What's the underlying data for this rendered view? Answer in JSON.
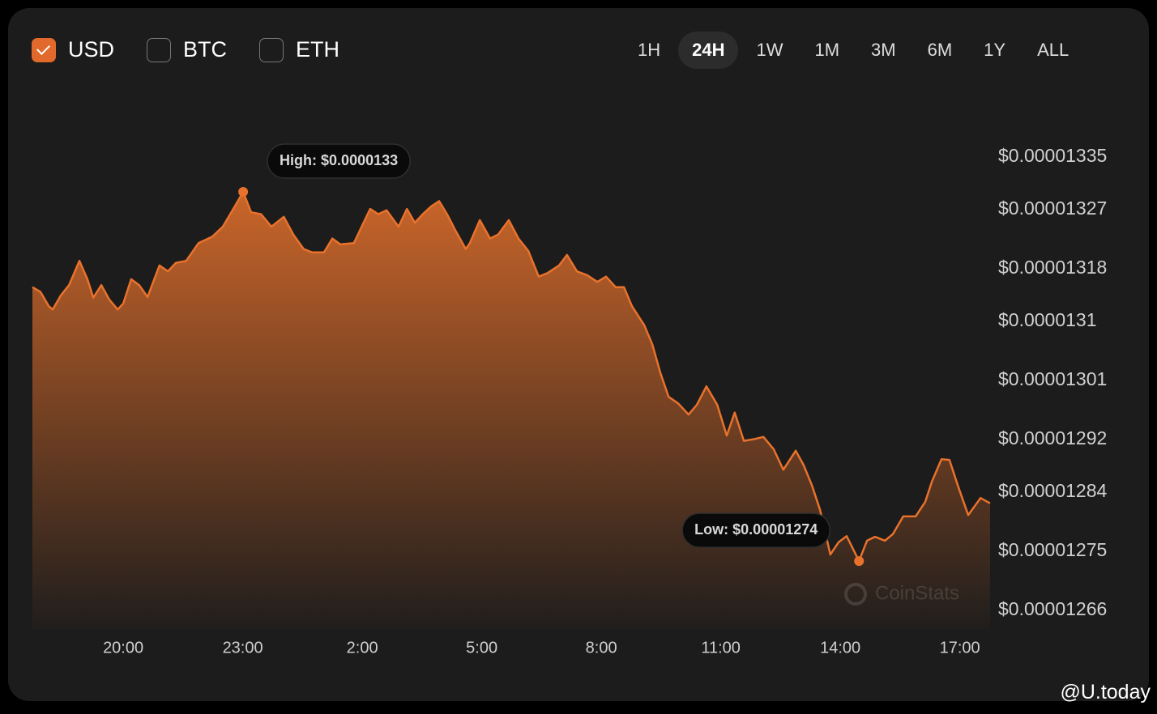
{
  "controls": {
    "currencies": [
      {
        "label": "USD",
        "checked": true
      },
      {
        "label": "BTC",
        "checked": false
      },
      {
        "label": "ETH",
        "checked": false
      }
    ],
    "ranges": [
      {
        "label": "1H",
        "selected": false
      },
      {
        "label": "24H",
        "selected": true
      },
      {
        "label": "1W",
        "selected": false
      },
      {
        "label": "1M",
        "selected": false
      },
      {
        "label": "3M",
        "selected": false
      },
      {
        "label": "6M",
        "selected": false
      },
      {
        "label": "1Y",
        "selected": false
      },
      {
        "label": "ALL",
        "selected": false
      }
    ]
  },
  "chart_data": {
    "type": "area",
    "color": "#e8722c",
    "x": [
      17.72,
      17.92,
      18.13,
      18.23,
      18.43,
      18.64,
      18.9,
      19.1,
      19.25,
      19.45,
      19.65,
      19.86,
      20.0,
      20.2,
      20.4,
      20.61,
      20.91,
      21.12,
      21.32,
      21.58,
      21.89,
      22.24,
      22.5,
      22.8,
      23.01,
      23.21,
      23.46,
      23.72,
      24.03,
      24.27,
      24.53,
      24.74,
      25.04,
      25.25,
      25.45,
      25.79,
      26.0,
      26.2,
      26.4,
      26.61,
      26.91,
      27.12,
      27.32,
      27.52,
      27.73,
      27.93,
      28.13,
      28.34,
      28.6,
      28.7,
      28.95,
      29.21,
      29.41,
      29.68,
      29.92,
      30.17,
      30.43,
      30.64,
      30.94,
      31.14,
      31.39,
      31.65,
      31.9,
      32.12,
      32.36,
      32.57,
      32.77,
      33.08,
      33.28,
      33.48,
      33.69,
      33.93,
      34.19,
      34.4,
      34.64,
      34.91,
      35.15,
      35.35,
      35.58,
      35.86,
      36.07,
      36.33,
      36.57,
      36.88,
      37.08,
      37.29,
      37.49,
      37.75,
      37.96,
      38.16,
      38.47,
      38.67,
      38.87,
      39.12,
      39.32,
      39.58,
      39.89,
      40.13,
      40.3,
      40.54,
      40.74,
      40.95,
      41.21,
      41.52,
      41.76
    ],
    "values": [
      1.3152e-05,
      1.3145e-05,
      1.3123e-05,
      1.3118e-05,
      1.3139e-05,
      1.3155e-05,
      1.3192e-05,
      1.3164e-05,
      1.3136e-05,
      1.3155e-05,
      1.3133e-05,
      1.3118e-05,
      1.3127e-05,
      1.3164e-05,
      1.3155e-05,
      1.3137e-05,
      1.3185e-05,
      1.3176e-05,
      1.3189e-05,
      1.3192e-05,
      1.3219e-05,
      1.3229e-05,
      1.3244e-05,
      1.3275e-05,
      1.3297e-05,
      1.3266e-05,
      1.3263e-05,
      1.3244e-05,
      1.3259e-05,
      1.3232e-05,
      1.321e-05,
      1.3205e-05,
      1.3205e-05,
      1.3226e-05,
      1.3217e-05,
      1.3219e-05,
      1.3246e-05,
      1.3271e-05,
      1.3263e-05,
      1.3269e-05,
      1.3244e-05,
      1.3271e-05,
      1.325e-05,
      1.3263e-05,
      1.3275e-05,
      1.3283e-05,
      1.3263e-05,
      1.3238e-05,
      1.321e-05,
      1.3219e-05,
      1.3254e-05,
      1.3226e-05,
      1.3232e-05,
      1.3254e-05,
      1.3226e-05,
      1.3207e-05,
      1.3168e-05,
      1.3173e-05,
      1.3185e-05,
      1.3201e-05,
      1.3176e-05,
      1.317e-05,
      1.316e-05,
      1.3168e-05,
      1.3152e-05,
      1.3152e-05,
      1.3123e-05,
      1.3094e-05,
      1.3065e-05,
      1.3022e-05,
      1.2985e-05,
      1.2975e-05,
      1.2958e-05,
      1.2973e-05,
      1.3001e-05,
      1.2973e-05,
      1.2926e-05,
      1.2961e-05,
      1.2918e-05,
      1.2921e-05,
      1.2924e-05,
      1.2905e-05,
      1.2874e-05,
      1.2903e-05,
      1.2881e-05,
      1.285e-05,
      1.2813e-05,
      1.2745e-05,
      1.2764e-05,
      1.2773e-05,
      1.2735e-05,
      1.2766e-05,
      1.2772e-05,
      1.2766e-05,
      1.2776e-05,
      1.2803e-05,
      1.2803e-05,
      1.2825e-05,
      1.2856e-05,
      1.289e-05,
      1.2889e-05,
      1.285e-05,
      1.2805e-05,
      1.2831e-05,
      1.2823e-05
    ],
    "xlim": [
      17.72,
      41.76
    ],
    "xticks": [
      {
        "value": 20,
        "label": "20:00"
      },
      {
        "value": 23,
        "label": "23:00"
      },
      {
        "value": 26,
        "label": "2:00"
      },
      {
        "value": 29,
        "label": "5:00"
      },
      {
        "value": 32,
        "label": "8:00"
      },
      {
        "value": 35,
        "label": "11:00"
      },
      {
        "value": 38,
        "label": "14:00"
      },
      {
        "value": 41,
        "label": "17:00"
      }
    ],
    "ylim": [
      1.26304e-05,
      1.34042e-05
    ],
    "yticks": [
      {
        "value": 1.335e-05,
        "label": "$0.00001335"
      },
      {
        "value": 1.327e-05,
        "label": "$0.00001327"
      },
      {
        "value": 1.318e-05,
        "label": "$0.00001318"
      },
      {
        "value": 1.31e-05,
        "label": "$0.0000131"
      },
      {
        "value": 1.301e-05,
        "label": "$0.00001301"
      },
      {
        "value": 1.292e-05,
        "label": "$0.00001292"
      },
      {
        "value": 1.284e-05,
        "label": "$0.00001284"
      },
      {
        "value": 1.275e-05,
        "label": "$0.00001275"
      },
      {
        "value": 1.266e-05,
        "label": "$0.00001266"
      }
    ],
    "grid": false,
    "high_label": "High: $0.0000133",
    "low_label": "Low: $0.00001274",
    "watermark": "CoinStats"
  },
  "credit": "@U.today"
}
